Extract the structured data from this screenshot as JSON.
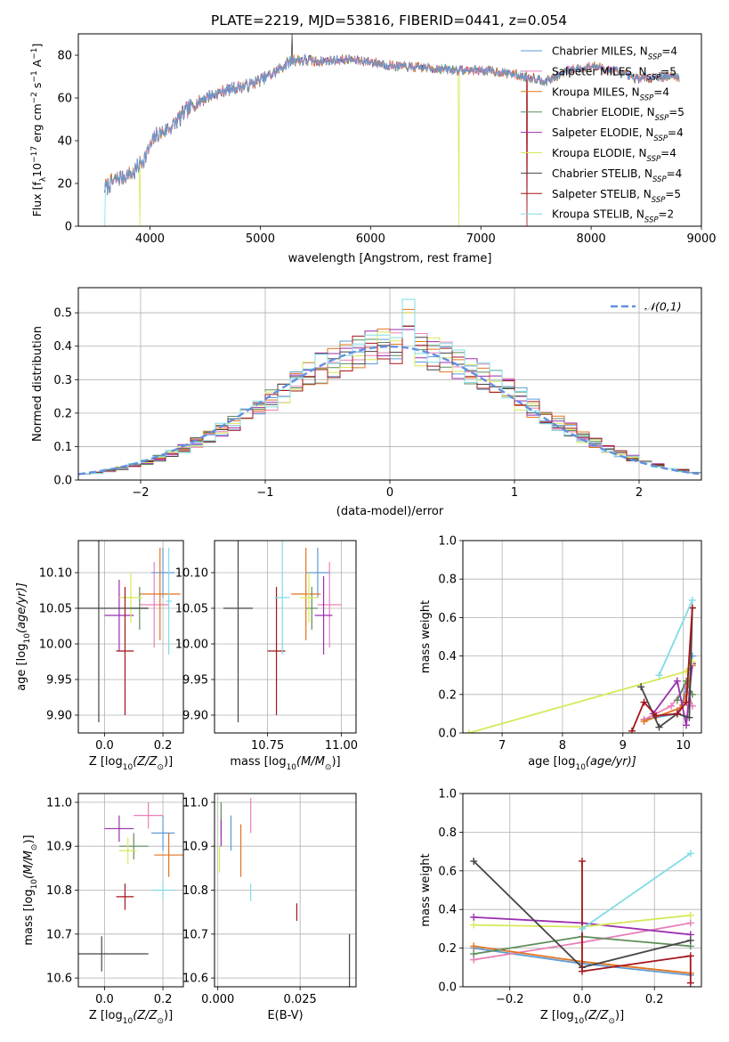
{
  "figure": {
    "title": "PLATE=2219, MJD=53816, FIBERID=0441, z=0.054"
  },
  "colors": {
    "Chabrier MILES": "#5e9bd4",
    "Salpeter MILES": "#e87fb8",
    "Kroupa MILES": "#e2741f",
    "Chabrier ELODIE": "#5e8c5a",
    "Salpeter ELODIE": "#9b2fae",
    "Kroupa ELODIE": "#d7e85a",
    "Chabrier STELIB": "#454545",
    "Salpeter STELIB": "#a3151b",
    "Kroupa STELIB": "#7fdce4",
    "normal": "#6490e0"
  },
  "chart_data": [
    {
      "id": "spectrum",
      "type": "line",
      "title": "PLATE=2219, MJD=53816, FIBERID=0441, z=0.054",
      "xlabel": "wavelength [Angstrom, rest frame]",
      "ylabel_parts": [
        "Flux [f",
        "λ",
        "10",
        "−17",
        " erg cm",
        "−2",
        " s",
        "−1",
        " A",
        "−1",
        "]"
      ],
      "xlim": [
        3350,
        9000
      ],
      "ylim": [
        0,
        90
      ],
      "xticks": [
        4000,
        5000,
        6000,
        7000,
        8000,
        9000
      ],
      "yticks": [
        0,
        20,
        40,
        60,
        80
      ],
      "legend_position": "upper right",
      "legend": [
        {
          "model": "Chabrier MILES",
          "label": "Chabrier MILES, N",
          "sub": "SSP",
          "suffix": "=4"
        },
        {
          "model": "Salpeter MILES",
          "label": "Salpeter MILES, N",
          "sub": "SSP",
          "suffix": "=5"
        },
        {
          "model": "Kroupa MILES",
          "label": "Kroupa MILES, N",
          "sub": "SSP",
          "suffix": "=4"
        },
        {
          "model": "Chabrier ELODIE",
          "label": "Chabrier ELODIE, N",
          "sub": "SSP",
          "suffix": "=5"
        },
        {
          "model": "Salpeter ELODIE",
          "label": "Salpeter ELODIE, N",
          "sub": "SSP",
          "suffix": "=4"
        },
        {
          "model": "Kroupa ELODIE",
          "label": "Kroupa ELODIE, N",
          "sub": "SSP",
          "suffix": "=4"
        },
        {
          "model": "Chabrier STELIB",
          "label": "Chabrier STELIB, N",
          "sub": "SSP",
          "suffix": "=4"
        },
        {
          "model": "Salpeter STELIB",
          "label": "Salpeter STELIB, N",
          "sub": "SSP",
          "suffix": "=5"
        },
        {
          "model": "Kroupa STELIB",
          "label": "Kroupa STELIB, N",
          "sub": "SSP",
          "suffix": "=2"
        }
      ],
      "continuum": {
        "x": [
          3590,
          3700,
          3850,
          3950,
          4050,
          4200,
          4350,
          4500,
          4700,
          4900,
          5100,
          5300,
          5500,
          5800,
          6000,
          6200,
          6500,
          6800,
          7000,
          7200,
          7400,
          7600,
          7800,
          8000,
          8200,
          8400,
          8600,
          8800
        ],
        "y": [
          18,
          22,
          25,
          32,
          42,
          47,
          55,
          60,
          64,
          66,
          71,
          78,
          77,
          78,
          77,
          75,
          74,
          73,
          73,
          72,
          70,
          68,
          73,
          75,
          73,
          69,
          70,
          70
        ]
      },
      "dropouts": [
        {
          "model": "Kroupa STELIB",
          "x": 3590
        },
        {
          "model": "Kroupa ELODIE",
          "x": 3910
        },
        {
          "model": "Kroupa ELODIE",
          "x": 6800
        },
        {
          "model": "Salpeter STELIB",
          "x": 7420
        }
      ],
      "spikes": [
        {
          "model": "Chabrier STELIB",
          "x": 5290,
          "y": 90
        }
      ]
    },
    {
      "id": "residuals",
      "type": "histogram",
      "xlabel": "(data-model)/error",
      "ylabel": "Normed distribution",
      "xlim": [
        -2.5,
        2.5
      ],
      "ylim": [
        0,
        0.575
      ],
      "xticks": [
        -2,
        -1,
        0,
        1,
        2
      ],
      "yticks": [
        0.0,
        0.1,
        0.2,
        0.3,
        0.4,
        0.5
      ],
      "bin_width": 0.1,
      "grid": true,
      "legend_position": "upper right",
      "legend": [
        {
          "label": "𝒩(0,1)"
        }
      ],
      "reference_curve": "standard normal",
      "series": [
        {
          "name": "Chabrier MILES",
          "peak": 0.45
        },
        {
          "name": "Salpeter MILES",
          "peak": 0.5
        },
        {
          "name": "Kroupa MILES",
          "peak": 0.51
        },
        {
          "name": "Chabrier ELODIE",
          "peak": 0.46
        },
        {
          "name": "Salpeter ELODIE",
          "peak": 0.45
        },
        {
          "name": "Kroupa ELODIE",
          "peak": 0.5
        },
        {
          "name": "Chabrier STELIB",
          "peak": 0.46
        },
        {
          "name": "Salpeter STELIB",
          "peak": 0.46
        },
        {
          "name": "Kroupa STELIB",
          "peak": 0.54
        }
      ]
    },
    {
      "id": "age-vs-Z",
      "type": "scatter",
      "xlabel": "Z [log",
      "xlabel_sub": "10",
      "xlabel_tail": "(Z/Z",
      "xlabel_tail_sub": "⊙",
      "xlabel_end": ")]",
      "ylabel": "age  [log",
      "ylabel_sub": "10",
      "ylabel_tail": "(age/yr)]",
      "xlim": [
        -0.09,
        0.27
      ],
      "ylim": [
        9.875,
        10.145
      ],
      "xticks": [
        0.0,
        0.2
      ],
      "yticks": [
        9.9,
        9.95,
        10.0,
        10.05,
        10.1
      ],
      "grid": true,
      "series": [
        {
          "name": "Chabrier MILES",
          "x": 0.2,
          "y": 10.1,
          "xerr": 0.04,
          "yerr": 0.035
        },
        {
          "name": "Salpeter MILES",
          "x": 0.17,
          "y": 10.055,
          "xerr": 0.05,
          "yerr": 0.06
        },
        {
          "name": "Kroupa MILES",
          "x": 0.19,
          "y": 10.07,
          "xerr": 0.07,
          "yerr": 0.065
        },
        {
          "name": "Chabrier ELODIE",
          "x": 0.12,
          "y": 10.05,
          "xerr": 0.03,
          "yerr": 0.03
        },
        {
          "name": "Salpeter ELODIE",
          "x": 0.05,
          "y": 10.04,
          "xerr": 0.05,
          "yerr": 0.05
        },
        {
          "name": "Kroupa ELODIE",
          "x": 0.09,
          "y": 10.065,
          "xerr": 0.04,
          "yerr": 0.035
        },
        {
          "name": "Chabrier STELIB",
          "x": -0.02,
          "y": 10.05,
          "xerr": 0.17,
          "yerr": 0.16
        },
        {
          "name": "Salpeter STELIB",
          "x": 0.07,
          "y": 9.99,
          "xerr": 0.03,
          "yerr": 0.09
        },
        {
          "name": "Kroupa STELIB",
          "x": 0.22,
          "y": 10.06,
          "xerr": 0.01,
          "yerr": 0.075
        }
      ]
    },
    {
      "id": "age-vs-mass",
      "type": "scatter",
      "xlabel": "mass [log",
      "xlabel_sub": "10",
      "xlabel_tail": "(M/M",
      "xlabel_tail_sub": "⊙",
      "xlabel_end": ")]",
      "xlim": [
        10.57,
        11.05
      ],
      "ylim": [
        9.875,
        10.145
      ],
      "xticks": [
        10.75,
        11.0
      ],
      "yticks": [
        9.9,
        9.95,
        10.0,
        10.05,
        10.1
      ],
      "grid": true,
      "series": [
        {
          "name": "Chabrier MILES",
          "x": 10.92,
          "y": 10.1,
          "xerr": 0.04,
          "yerr": 0.035
        },
        {
          "name": "Salpeter MILES",
          "x": 10.96,
          "y": 10.055,
          "xerr": 0.04,
          "yerr": 0.06
        },
        {
          "name": "Kroupa MILES",
          "x": 10.88,
          "y": 10.07,
          "xerr": 0.05,
          "yerr": 0.065
        },
        {
          "name": "Chabrier ELODIE",
          "x": 10.9,
          "y": 10.05,
          "xerr": 0.02,
          "yerr": 0.03
        },
        {
          "name": "Salpeter ELODIE",
          "x": 10.94,
          "y": 10.04,
          "xerr": 0.03,
          "yerr": 0.055
        },
        {
          "name": "Kroupa ELODIE",
          "x": 10.89,
          "y": 10.065,
          "xerr": 0.03,
          "yerr": 0.035
        },
        {
          "name": "Chabrier STELIB",
          "x": 10.65,
          "y": 10.05,
          "xerr": 0.05,
          "yerr": 0.16
        },
        {
          "name": "Salpeter STELIB",
          "x": 10.78,
          "y": 9.99,
          "xerr": 0.03,
          "yerr": 0.09
        },
        {
          "name": "Kroupa STELIB",
          "x": 10.8,
          "y": 10.065,
          "xerr": 0.025,
          "yerr": 0.08
        }
      ]
    },
    {
      "id": "weight-vs-age",
      "type": "line",
      "xlabel": "age  [log",
      "xlabel_sub": "10",
      "xlabel_tail": "(age/yr)]",
      "ylabel": "mass weight",
      "xlim": [
        6.35,
        10.3
      ],
      "ylim": [
        0,
        1.0
      ],
      "xticks": [
        7,
        8,
        9,
        10
      ],
      "yticks": [
        0.0,
        0.2,
        0.4,
        0.6,
        0.8,
        1.0
      ],
      "grid": true,
      "series": [
        {
          "name": "Chabrier MILES",
          "x": [
            9.35,
            9.9,
            10.0,
            10.15
          ],
          "y": [
            0.07,
            0.1,
            0.17,
            0.4
          ]
        },
        {
          "name": "Salpeter MILES",
          "x": [
            9.35,
            9.8,
            10.05,
            10.15
          ],
          "y": [
            0.07,
            0.14,
            0.25,
            0.14
          ]
        },
        {
          "name": "Kroupa MILES",
          "x": [
            9.35,
            9.95,
            10.05,
            10.15
          ],
          "y": [
            0.06,
            0.13,
            0.2,
            0.35
          ]
        },
        {
          "name": "Chabrier ELODIE",
          "x": [
            9.9,
            10.05,
            10.15
          ],
          "y": [
            0.17,
            0.27,
            0.2
          ]
        },
        {
          "name": "Salpeter ELODIE",
          "x": [
            9.5,
            9.9,
            10.05,
            10.15
          ],
          "y": [
            0.1,
            0.27,
            0.04,
            0.36
          ]
        },
        {
          "name": "Kroupa ELODIE",
          "x": [
            6.45,
            10.05,
            10.15
          ],
          "y": [
            0.0,
            0.32,
            0.37
          ]
        },
        {
          "name": "Chabrier STELIB",
          "x": [
            9.3,
            9.6,
            9.9,
            10.1,
            10.15
          ],
          "y": [
            0.24,
            0.03,
            0.1,
            0.08,
            0.65
          ]
        },
        {
          "name": "Salpeter STELIB",
          "x": [
            9.15,
            9.35,
            9.55,
            9.9,
            10.05,
            10.15
          ],
          "y": [
            0.01,
            0.16,
            0.09,
            0.1,
            0.16,
            0.65
          ]
        },
        {
          "name": "Kroupa STELIB",
          "x": [
            9.6,
            10.15
          ],
          "y": [
            0.3,
            0.69
          ]
        }
      ]
    },
    {
      "id": "mass-vs-Z",
      "type": "scatter",
      "xlabel": "Z [log",
      "xlabel_sub": "10",
      "xlabel_tail": "(Z/Z",
      "xlabel_tail_sub": "⊙",
      "xlabel_end": ")]",
      "ylabel": "mass [log",
      "ylabel_sub": "10",
      "ylabel_tail": "(M/M",
      "ylabel_tail_sub": "⊙",
      "ylabel_end": ")]",
      "xlim": [
        -0.09,
        0.27
      ],
      "ylim": [
        10.58,
        11.02
      ],
      "xticks": [
        0.0,
        0.2
      ],
      "yticks": [
        10.6,
        10.7,
        10.8,
        10.9,
        11.0
      ],
      "grid": true,
      "series": [
        {
          "name": "Chabrier MILES",
          "x": 0.2,
          "y": 10.93,
          "xerr": 0.04,
          "yerr": 0.04
        },
        {
          "name": "Salpeter MILES",
          "x": 0.15,
          "y": 10.97,
          "xerr": 0.05,
          "yerr": 0.03
        },
        {
          "name": "Kroupa MILES",
          "x": 0.22,
          "y": 10.88,
          "xerr": 0.05,
          "yerr": 0.05
        },
        {
          "name": "Chabrier ELODIE",
          "x": 0.1,
          "y": 10.9,
          "xerr": 0.05,
          "yerr": 0.03
        },
        {
          "name": "Salpeter ELODIE",
          "x": 0.05,
          "y": 10.94,
          "xerr": 0.05,
          "yerr": 0.03
        },
        {
          "name": "Kroupa ELODIE",
          "x": 0.08,
          "y": 10.89,
          "xerr": 0.03,
          "yerr": 0.03
        },
        {
          "name": "Chabrier STELIB",
          "x": -0.01,
          "y": 10.655,
          "xerr": 0.16,
          "yerr": 0.04
        },
        {
          "name": "Salpeter STELIB",
          "x": 0.07,
          "y": 10.785,
          "xerr": 0.03,
          "yerr": 0.03
        },
        {
          "name": "Kroupa STELIB",
          "x": 0.2,
          "y": 10.8,
          "xerr": 0.04,
          "yerr": 0.02
        }
      ]
    },
    {
      "id": "mass-vs-EBV",
      "type": "scatter",
      "xlabel": "E(B-V)",
      "xlim": [
        -0.001,
        0.042
      ],
      "ylim": [
        10.58,
        11.02
      ],
      "xticks": [
        0.0,
        0.025
      ],
      "tick_labels": [
        "0.000",
        "0.025"
      ],
      "yticks": [
        10.6,
        10.7,
        10.8,
        10.9,
        11.0
      ],
      "grid": true,
      "series": [
        {
          "name": "Chabrier MILES",
          "x": 0.004,
          "y": 10.93,
          "xerr": 0.0,
          "yerr": 0.04
        },
        {
          "name": "Salpeter MILES",
          "x": 0.01,
          "y": 10.97,
          "xerr": 0.0,
          "yerr": 0.04
        },
        {
          "name": "Kroupa MILES",
          "x": 0.007,
          "y": 10.89,
          "xerr": 0.0,
          "yerr": 0.06
        },
        {
          "name": "Chabrier ELODIE",
          "x": 0.001,
          "y": 10.96,
          "xerr": 0.0,
          "yerr": 0.04
        },
        {
          "name": "Salpeter ELODIE",
          "x": 0.001,
          "y": 10.93,
          "xerr": 0.0,
          "yerr": 0.03
        },
        {
          "name": "Kroupa ELODIE",
          "x": 0.0005,
          "y": 10.87,
          "xerr": 0.0,
          "yerr": 0.03
        },
        {
          "name": "Chabrier STELIB",
          "x": 0.04,
          "y": 10.61,
          "xerr": 0.0,
          "yerr": 0.09
        },
        {
          "name": "Salpeter STELIB",
          "x": 0.024,
          "y": 10.75,
          "xerr": 0.0,
          "yerr": 0.02
        },
        {
          "name": "Kroupa STELIB",
          "x": 0.01,
          "y": 10.795,
          "xerr": 0.0,
          "yerr": 0.02
        }
      ]
    },
    {
      "id": "weight-vs-Z",
      "type": "line",
      "xlabel": "Z [log",
      "xlabel_sub": "10",
      "xlabel_tail": "(Z/Z",
      "xlabel_tail_sub": "⊙",
      "xlabel_end": ")]",
      "ylabel": "mass weight",
      "xlim": [
        -0.33,
        0.33
      ],
      "ylim": [
        0,
        1.0
      ],
      "xticks": [
        -0.2,
        0.0,
        0.2
      ],
      "tick_labels": [
        "−0.2",
        "0.0",
        "0.2"
      ],
      "yticks": [
        0.0,
        0.2,
        0.4,
        0.6,
        0.8,
        1.0
      ],
      "grid": true,
      "series": [
        {
          "name": "Chabrier MILES",
          "x": [
            -0.3,
            0.0,
            0.3
          ],
          "y": [
            0.2,
            0.12,
            0.06
          ]
        },
        {
          "name": "Salpeter MILES",
          "x": [
            -0.3,
            0.0,
            0.3
          ],
          "y": [
            0.14,
            0.23,
            0.33
          ]
        },
        {
          "name": "Kroupa MILES",
          "x": [
            -0.3,
            0.0,
            0.3
          ],
          "y": [
            0.21,
            0.13,
            0.07
          ]
        },
        {
          "name": "Chabrier ELODIE",
          "x": [
            -0.3,
            0.0,
            0.3
          ],
          "y": [
            0.17,
            0.26,
            0.21
          ]
        },
        {
          "name": "Salpeter ELODIE",
          "x": [
            -0.3,
            0.0,
            0.3
          ],
          "y": [
            0.36,
            0.33,
            0.27
          ]
        },
        {
          "name": "Kroupa ELODIE",
          "x": [
            -0.3,
            0.0,
            0.3
          ],
          "y": [
            0.32,
            0.31,
            0.37
          ]
        },
        {
          "name": "Chabrier STELIB",
          "x": [
            -0.3,
            0.0,
            0.3
          ],
          "y": [
            0.65,
            0.1,
            0.24
          ]
        },
        {
          "name": "Salpeter STELIB",
          "x": [
            0.0,
            0.0,
            0.3,
            0.3
          ],
          "y": [
            0.65,
            0.08,
            0.16,
            0.02
          ]
        },
        {
          "name": "Kroupa STELIB",
          "x": [
            0.0,
            0.3
          ],
          "y": [
            0.3,
            0.69
          ]
        }
      ]
    }
  ]
}
